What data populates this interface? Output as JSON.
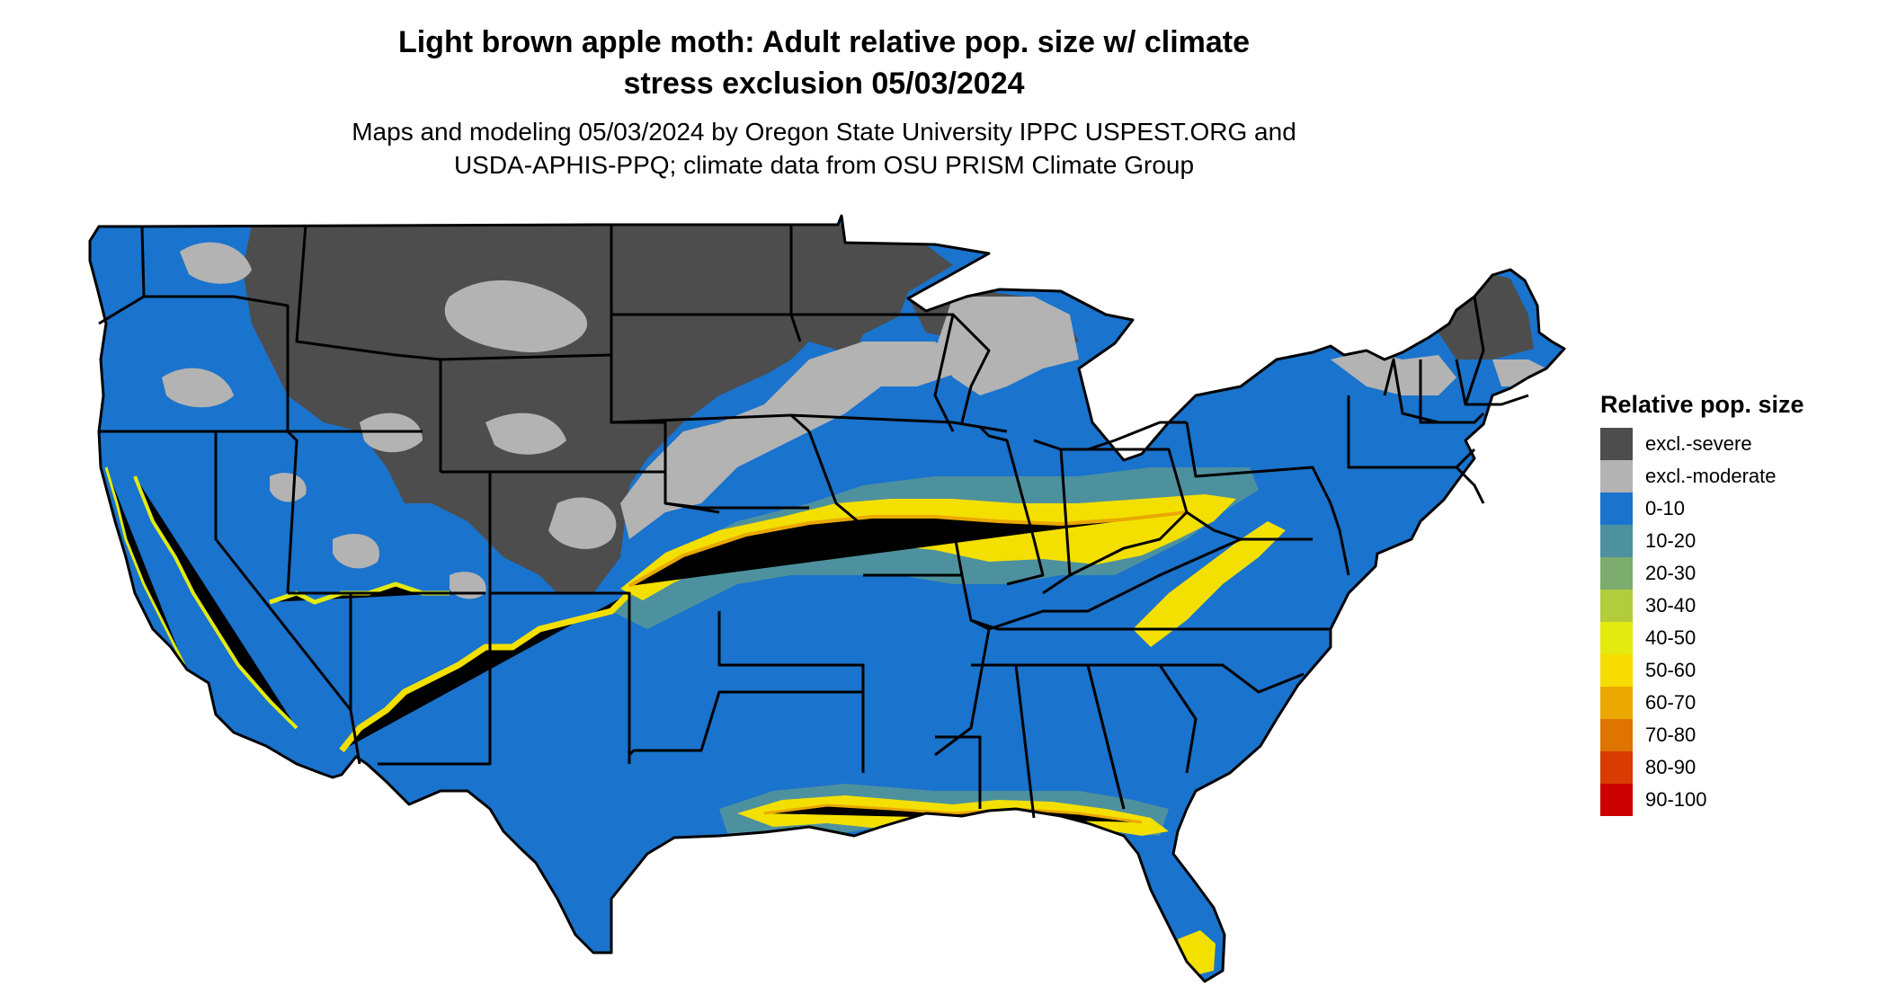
{
  "title": {
    "line1": "Light brown apple moth: Adult relative pop. size w/ climate",
    "line2": "stress exclusion 05/03/2024"
  },
  "subtitle": {
    "line1": "Maps and modeling 05/03/2024 by Oregon State University IPPC USPEST.ORG and",
    "line2": "USDA-APHIS-PPQ; climate data from OSU PRISM Climate Group"
  },
  "legend": {
    "title": "Relative pop. size",
    "items": [
      {
        "label": "excl.-severe",
        "color": "#4d4d4d"
      },
      {
        "label": "excl.-moderate",
        "color": "#b3b3b3"
      },
      {
        "label": "0-10",
        "color": "#1a73cc"
      },
      {
        "label": "10-20",
        "color": "#4e919e"
      },
      {
        "label": "20-30",
        "color": "#7cad6e"
      },
      {
        "label": "30-40",
        "color": "#b2cc3c"
      },
      {
        "label": "40-50",
        "color": "#e3ea10"
      },
      {
        "label": "50-60",
        "color": "#f6dc00"
      },
      {
        "label": "60-70",
        "color": "#eaa800"
      },
      {
        "label": "70-80",
        "color": "#e07400"
      },
      {
        "label": "80-90",
        "color": "#d83c00"
      },
      {
        "label": "90-100",
        "color": "#cc0000"
      }
    ]
  },
  "map": {
    "region": "Contiguous United States",
    "colors": {
      "severe": "#4d4d4d",
      "moderate": "#b3b3b3",
      "low": "#1a73cc",
      "teal": "#4e919e",
      "green": "#7cad6e",
      "yellow": "#f3e000",
      "orange": "#eaa800",
      "border": "#000000"
    }
  }
}
